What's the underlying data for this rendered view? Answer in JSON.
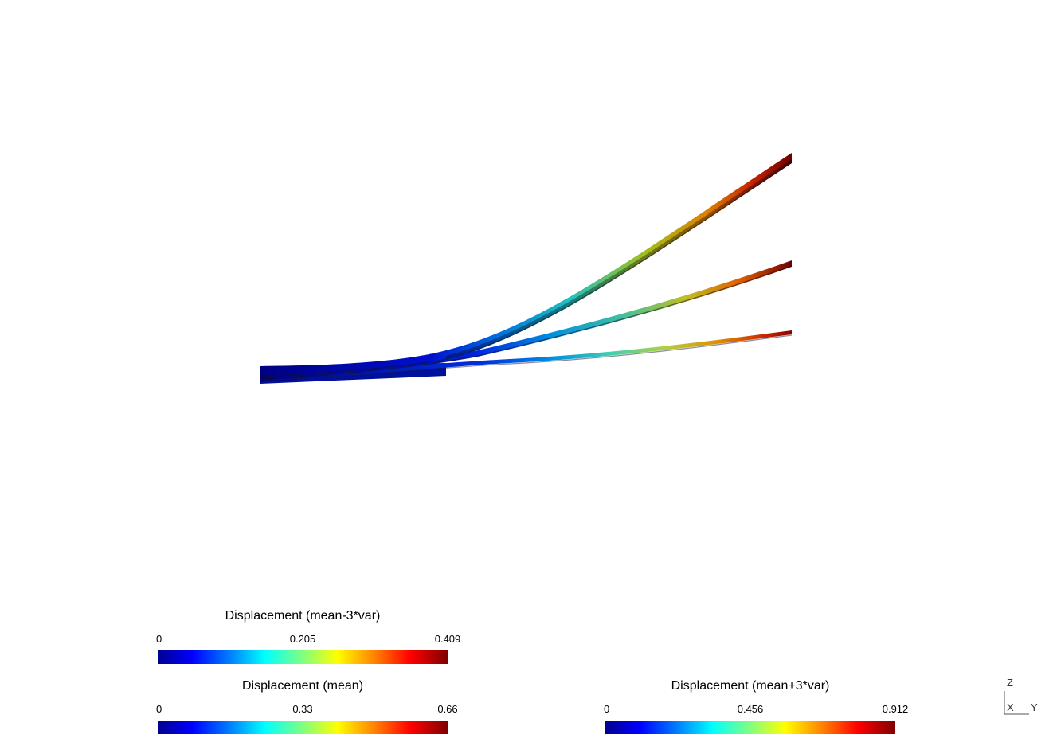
{
  "viewport": {
    "colormap": [
      "#00008f",
      "#0000ff",
      "#0080ff",
      "#00ffff",
      "#80ff80",
      "#ffff00",
      "#ff8000",
      "#ff0000",
      "#800000"
    ]
  },
  "legends": {
    "mean_minus": {
      "title": "Displacement (mean-3*var)",
      "min": "0",
      "mid": "0.205",
      "max": "0.409"
    },
    "mean": {
      "title": "Displacement (mean)",
      "min": "0",
      "mid": "0.33",
      "max": "0.66"
    },
    "mean_plus": {
      "title": "Displacement (mean+3*var)",
      "min": "0",
      "mid": "0.456",
      "max": "0.912"
    }
  },
  "axes": {
    "z": "Z",
    "x": "X",
    "y": "Y"
  }
}
